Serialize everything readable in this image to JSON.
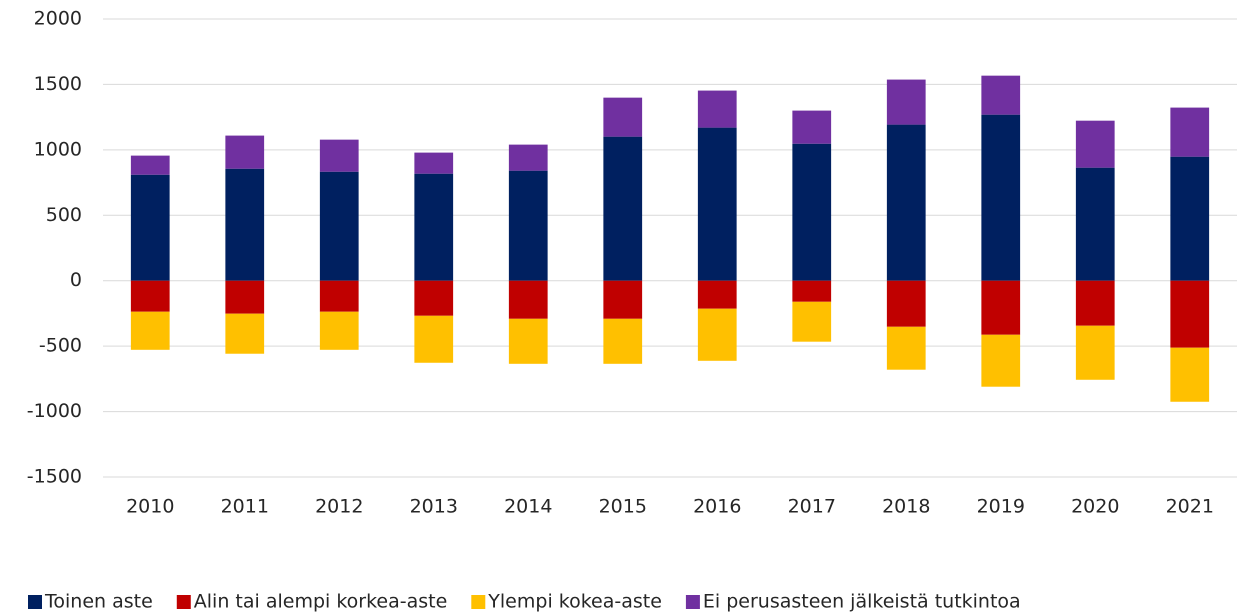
{
  "chart_data": {
    "type": "stacked_bar",
    "categories": [
      "2010",
      "2011",
      "2012",
      "2013",
      "2014",
      "2015",
      "2016",
      "2017",
      "2018",
      "2019",
      "2020",
      "2021"
    ],
    "series": [
      {
        "name": "Toinen aste",
        "color": "#002060",
        "values": [
          810,
          856,
          833,
          818,
          841,
          1101,
          1170,
          1047,
          1193,
          1269,
          864,
          948
        ]
      },
      {
        "name": "Alin tai alempi korkea-aste",
        "color": "#c00000",
        "values": [
          -237,
          -252,
          -237,
          -268,
          -291,
          -291,
          -214,
          -161,
          -352,
          -413,
          -344,
          -512
        ]
      },
      {
        "name": "Ylempi kokea-aste",
        "color": "#ffc000",
        "values": [
          -291,
          -306,
          -291,
          -359,
          -344,
          -344,
          -398,
          -305,
          -328,
          -397,
          -413,
          -413
        ]
      },
      {
        "name": "Ei perusasteen jälkeistä tutkintoa",
        "color": "#7030a0",
        "values": [
          146,
          253,
          245,
          161,
          199,
          298,
          283,
          253,
          344,
          298,
          359,
          375
        ]
      }
    ],
    "ylim": [
      -1500,
      2000
    ],
    "yticks": [
      -1500,
      -1000,
      -500,
      0,
      500,
      1000,
      1500,
      2000
    ],
    "grid": true,
    "legend": "bottom"
  }
}
